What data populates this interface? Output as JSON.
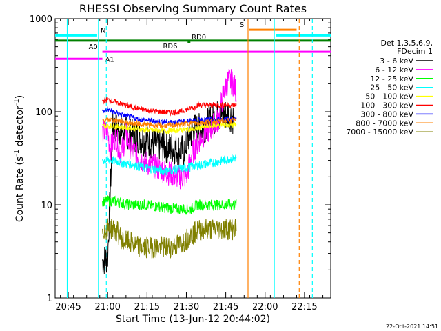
{
  "chart_data": {
    "type": "line",
    "title": "RHESSI Observing Summary Count Rates",
    "xlabel": "Start Time (13-Jun-12 20:44:02)",
    "ylabel_main": "Count Rate (s",
    "ylabel_sup1": "-1",
    "ylabel_mid": " detector",
    "ylabel_sup2": "-1",
    "ylabel_end": ")",
    "yscale": "log",
    "ylim": [
      1,
      1000
    ],
    "xlim_minutes": [
      -4,
      101
    ],
    "x_ticks": [
      {
        "label": "20:45",
        "minute": 1
      },
      {
        "label": "21:00",
        "minute": 16
      },
      {
        "label": "21:15",
        "minute": 31
      },
      {
        "label": "21:30",
        "minute": 46
      },
      {
        "label": "21:45",
        "minute": 61
      },
      {
        "label": "22:00",
        "minute": 76
      },
      {
        "label": "22:15",
        "minute": 91
      }
    ],
    "y_ticks": [
      {
        "label": "1",
        "value": 1
      },
      {
        "label": "10",
        "value": 10
      },
      {
        "label": "100",
        "value": 100
      },
      {
        "label": "1000",
        "value": 1000
      }
    ],
    "legend_header": [
      "Det 1,3,5,6,9,",
      "FDecim 1"
    ],
    "series": [
      {
        "name": "3 - 6 keV",
        "color": "#000000",
        "values": [
          [
            14,
            2.5
          ],
          [
            16,
            2.7
          ],
          [
            18,
            70
          ],
          [
            22,
            62
          ],
          [
            26,
            55
          ],
          [
            30,
            50
          ],
          [
            34,
            45
          ],
          [
            38,
            42
          ],
          [
            42,
            40
          ],
          [
            45,
            38
          ],
          [
            47,
            55
          ],
          [
            49,
            65
          ],
          [
            52,
            65
          ],
          [
            55,
            80
          ],
          [
            58,
            90
          ],
          [
            62,
            95
          ],
          [
            64,
            85
          ]
        ]
      },
      {
        "name": "6 - 12 keV",
        "color": "#ff00ff",
        "values": [
          [
            14,
            60
          ],
          [
            16,
            60
          ],
          [
            17,
            40
          ],
          [
            19,
            55
          ],
          [
            21,
            35
          ],
          [
            23,
            55
          ],
          [
            25,
            40
          ],
          [
            28,
            32
          ],
          [
            31,
            28
          ],
          [
            35,
            25
          ],
          [
            39,
            22
          ],
          [
            43,
            20
          ],
          [
            46,
            20
          ],
          [
            48,
            35
          ],
          [
            50,
            45
          ],
          [
            52,
            55
          ],
          [
            55,
            65
          ],
          [
            58,
            80
          ],
          [
            60,
            150
          ],
          [
            62,
            220
          ],
          [
            64,
            200
          ],
          [
            65,
            160
          ]
        ]
      },
      {
        "name": "12 - 25 keV",
        "color": "#00ff00",
        "values": [
          [
            14,
            11
          ],
          [
            18,
            11
          ],
          [
            24,
            10
          ],
          [
            30,
            10
          ],
          [
            36,
            9.5
          ],
          [
            42,
            9
          ],
          [
            46,
            9
          ],
          [
            48,
            9
          ],
          [
            50,
            10
          ],
          [
            54,
            10
          ],
          [
            58,
            10
          ],
          [
            62,
            10
          ],
          [
            65,
            10
          ]
        ]
      },
      {
        "name": "25 - 50 keV",
        "color": "#00ffff",
        "values": [
          [
            14,
            30
          ],
          [
            18,
            30
          ],
          [
            22,
            28
          ],
          [
            26,
            27
          ],
          [
            30,
            25
          ],
          [
            34,
            24
          ],
          [
            38,
            23
          ],
          [
            42,
            24
          ],
          [
            46,
            25
          ],
          [
            49,
            26
          ],
          [
            52,
            27
          ],
          [
            55,
            28
          ],
          [
            58,
            29
          ],
          [
            62,
            31
          ],
          [
            65,
            32
          ]
        ]
      },
      {
        "name": "50 - 100 keV",
        "color": "#ffff00",
        "values": [
          [
            14,
            70
          ],
          [
            18,
            70
          ],
          [
            22,
            68
          ],
          [
            26,
            66
          ],
          [
            30,
            64
          ],
          [
            34,
            63
          ],
          [
            38,
            62
          ],
          [
            42,
            63
          ],
          [
            46,
            64
          ],
          [
            49,
            65
          ],
          [
            52,
            68
          ],
          [
            55,
            70
          ],
          [
            58,
            72
          ],
          [
            62,
            72
          ],
          [
            65,
            72
          ]
        ]
      },
      {
        "name": "100 - 300 keV",
        "color": "#ff0000",
        "values": [
          [
            14,
            130
          ],
          [
            16,
            135
          ],
          [
            20,
            125
          ],
          [
            24,
            115
          ],
          [
            28,
            108
          ],
          [
            32,
            103
          ],
          [
            36,
            100
          ],
          [
            40,
            98
          ],
          [
            44,
            100
          ],
          [
            48,
            110
          ],
          [
            49,
            110
          ],
          [
            50,
            118
          ],
          [
            54,
            118
          ],
          [
            58,
            118
          ],
          [
            62,
            118
          ],
          [
            65,
            118
          ]
        ]
      },
      {
        "name": "300 - 800 keV",
        "color": "#0000ff",
        "values": [
          [
            14,
            100
          ],
          [
            16,
            105
          ],
          [
            20,
            95
          ],
          [
            24,
            88
          ],
          [
            28,
            83
          ],
          [
            32,
            80
          ],
          [
            36,
            78
          ],
          [
            40,
            77
          ],
          [
            44,
            78
          ],
          [
            48,
            80
          ],
          [
            52,
            82
          ],
          [
            56,
            82
          ],
          [
            60,
            83
          ],
          [
            65,
            83
          ]
        ]
      },
      {
        "name": "800 - 7000 keV",
        "color": "#ff8000",
        "values": [
          [
            14,
            80
          ],
          [
            18,
            82
          ],
          [
            22,
            78
          ],
          [
            26,
            75
          ],
          [
            30,
            73
          ],
          [
            34,
            72
          ],
          [
            38,
            71
          ],
          [
            42,
            72
          ],
          [
            46,
            74
          ],
          [
            50,
            76
          ],
          [
            54,
            78
          ],
          [
            58,
            79
          ],
          [
            62,
            80
          ],
          [
            65,
            80
          ]
        ]
      },
      {
        "name": "7000 - 15000 keV",
        "color": "#808000",
        "values": [
          [
            14,
            5.5
          ],
          [
            18,
            5.5
          ],
          [
            20,
            5
          ],
          [
            22,
            4
          ],
          [
            24,
            4
          ],
          [
            28,
            3.5
          ],
          [
            32,
            3.5
          ],
          [
            36,
            3.5
          ],
          [
            40,
            3.5
          ],
          [
            44,
            3.8
          ],
          [
            47,
            4.5
          ],
          [
            49,
            5
          ],
          [
            52,
            5.5
          ],
          [
            56,
            5.5
          ],
          [
            60,
            5.5
          ],
          [
            65,
            5.5
          ]
        ]
      }
    ],
    "flag_bars": [
      {
        "label": "N",
        "color": "#00ffff",
        "segments": [
          [
            -4,
            12
          ],
          [
            80,
            101
          ]
        ],
        "y": 660
      },
      {
        "label": "S",
        "color": "#ff8000",
        "segments": [
          [
            70,
            88
          ]
        ],
        "y": 760
      },
      {
        "label": "RD6",
        "color": "#008000",
        "segments": [
          [
            -4,
            101
          ]
        ],
        "y": 580
      },
      {
        "label": "RD0",
        "color": "#008000",
        "segments": [],
        "y": 560
      },
      {
        "label": "A0",
        "color": "#ff00ff",
        "segments": [
          [
            14,
            101
          ]
        ],
        "y": 440
      },
      {
        "label": "A1",
        "color": "#ff00ff",
        "segments": [
          [
            -4,
            14
          ]
        ],
        "y": 370
      }
    ],
    "vertical_markers": [
      {
        "minute": 0.6,
        "color": "#00ffff",
        "style": "solid"
      },
      {
        "minute": 12.5,
        "color": "#00ffff",
        "style": "solid"
      },
      {
        "minute": 15.5,
        "color": "#00ffff",
        "style": "dashed"
      },
      {
        "minute": 69.5,
        "color": "#ff8000",
        "style": "solid"
      },
      {
        "minute": 79.5,
        "color": "#00ffff",
        "style": "solid"
      },
      {
        "minute": 89,
        "color": "#ff8000",
        "style": "dashed"
      },
      {
        "minute": 94,
        "color": "#00ffff",
        "style": "dashed"
      }
    ],
    "footer_date": "22-Oct-2021 14:51"
  }
}
